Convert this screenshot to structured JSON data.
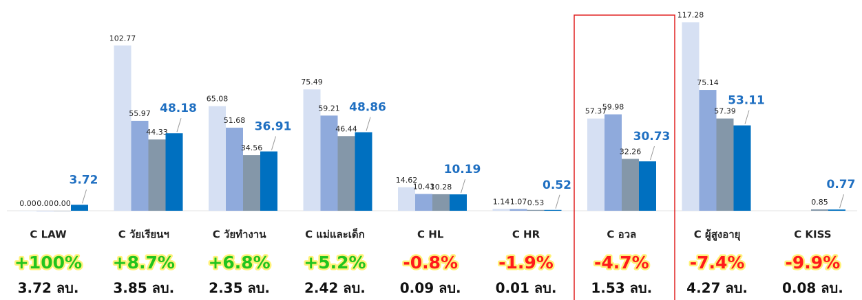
{
  "chart_data": {
    "type": "bar",
    "categories": [
      "C LAW",
      "C วัยเรียนฯ",
      "C วัยทำงาน",
      "C แม่และเด็ก",
      "C HL",
      "C HR",
      "C อวล",
      "C ผู้สูงอายุ",
      "C KISS"
    ],
    "series": [
      {
        "color": "#d6e0f3",
        "values": [
          0,
          102.77,
          65.08,
          75.49,
          14.62,
          1.14,
          57.37,
          117.28,
          null
        ],
        "value_labels": [
          "0.00",
          "102.77",
          "65.08",
          "75.49",
          "14.62",
          "1.14",
          "57.37",
          "117.28",
          null
        ]
      },
      {
        "color": "#8faadc",
        "values": [
          0,
          55.97,
          51.68,
          59.21,
          10.43,
          1.07,
          59.98,
          75.14,
          null
        ],
        "value_labels": [
          "0.00",
          "55.97",
          "51.68",
          "59.21",
          "10.43",
          "1.07",
          "59.98",
          "75.14",
          null
        ]
      },
      {
        "color": "#8497a9",
        "values": [
          0,
          44.33,
          34.56,
          46.44,
          10.28,
          0.53,
          32.26,
          57.39,
          0.85
        ],
        "value_labels": [
          "0.00",
          "44.33",
          "34.56",
          "46.44",
          "10.28",
          "0.53",
          "32.26",
          "57.39",
          "0.85"
        ]
      },
      {
        "color": "#0070c0",
        "values": [
          3.72,
          48.18,
          36.91,
          48.86,
          10.19,
          0.52,
          30.73,
          53.11,
          0.77
        ]
      }
    ],
    "ylim": [
      0,
      120
    ],
    "changes": [
      "+100%",
      "+8.7%",
      "+6.8%",
      "+5.2%",
      "-0.8%",
      "-1.9%",
      "-4.7%",
      "-7.4%",
      "-9.9%"
    ],
    "change_colors": [
      "#22c41e",
      "#22c41e",
      "#22c41e",
      "#22c41e",
      "#ff1a1a",
      "#ff1a1a",
      "#ff1a1a",
      "#ff1a1a",
      "#ff1a1a"
    ],
    "amounts": [
      "3.72 ลบ.",
      "3.85 ลบ.",
      "2.35 ลบ.",
      "2.42 ลบ.",
      "0.09 ลบ.",
      "0.01 ลบ.",
      "1.53 ลบ.",
      "4.27 ลบ.",
      "0.08 ลบ."
    ],
    "highlight_index": 6
  }
}
